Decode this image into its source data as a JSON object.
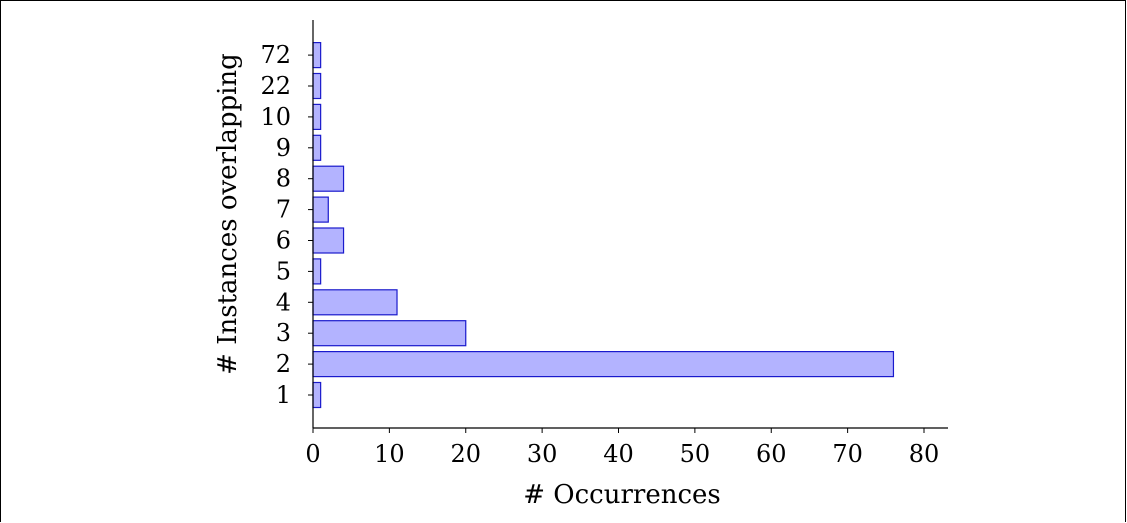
{
  "chart_data": {
    "type": "bar",
    "orientation": "horizontal",
    "categories": [
      "1",
      "2",
      "3",
      "4",
      "5",
      "6",
      "7",
      "8",
      "9",
      "10",
      "22",
      "72"
    ],
    "values": [
      1,
      76,
      20,
      11,
      1,
      4,
      2,
      4,
      1,
      1,
      1,
      1
    ],
    "xlabel": "# Occurrences",
    "ylabel": "# Instances overlapping",
    "xlim": [
      0,
      84
    ],
    "xticks": [
      0,
      10,
      20,
      30,
      40,
      50,
      60,
      70,
      80
    ],
    "grid": false,
    "colors": {
      "fill": "#b3b3ff",
      "stroke": "#1a1acc"
    }
  }
}
